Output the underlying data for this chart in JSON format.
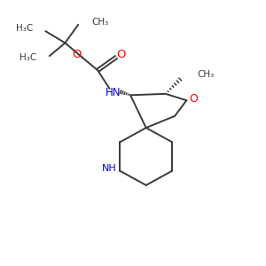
{
  "bg_color": "#ffffff",
  "bond_color": "#3a3a3a",
  "bond_lw": 1.4,
  "atom_colors": {
    "O": "#ff0000",
    "N": "#0000cc",
    "C": "#3a3a3a"
  },
  "figsize": [
    3.0,
    3.0
  ],
  "dpi": 100,
  "xlim": [
    0,
    10
  ],
  "ylim": [
    0,
    10
  ]
}
